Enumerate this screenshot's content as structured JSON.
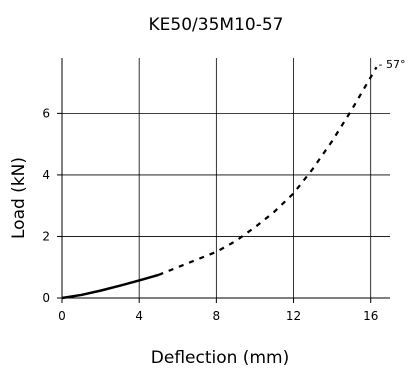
{
  "chart_data": {
    "type": "line",
    "title": "KE50/35M10-57",
    "xlabel": "Deflection (mm)",
    "ylabel": "Load (kN)",
    "xlim": [
      0,
      17
    ],
    "ylim": [
      0,
      7.8
    ],
    "x_ticks": [
      0,
      4,
      8,
      12,
      16
    ],
    "y_ticks": [
      0,
      2,
      4,
      6
    ],
    "x_tick_labels": [
      "0",
      "4",
      "8",
      "12",
      "16"
    ],
    "y_tick_labels": [
      "0",
      "2",
      "4",
      "6"
    ],
    "grid": true,
    "legend": "none",
    "line_color": "#000000",
    "series": [
      {
        "style": "solid",
        "x": [
          0,
          1,
          2,
          3,
          4,
          5
        ],
        "y": [
          0,
          0.1,
          0.24,
          0.4,
          0.57,
          0.75
        ]
      },
      {
        "style": "dashed",
        "x": [
          5,
          6,
          7,
          8,
          9,
          10,
          11,
          12,
          13,
          14,
          15,
          16.3
        ],
        "y": [
          0.75,
          1.0,
          1.25,
          1.5,
          1.85,
          2.3,
          2.8,
          3.4,
          4.2,
          5.1,
          6.1,
          7.5
        ]
      }
    ],
    "annotations": [
      {
        "text": "- 57°",
        "x": 16.3,
        "y": 7.5
      }
    ]
  }
}
